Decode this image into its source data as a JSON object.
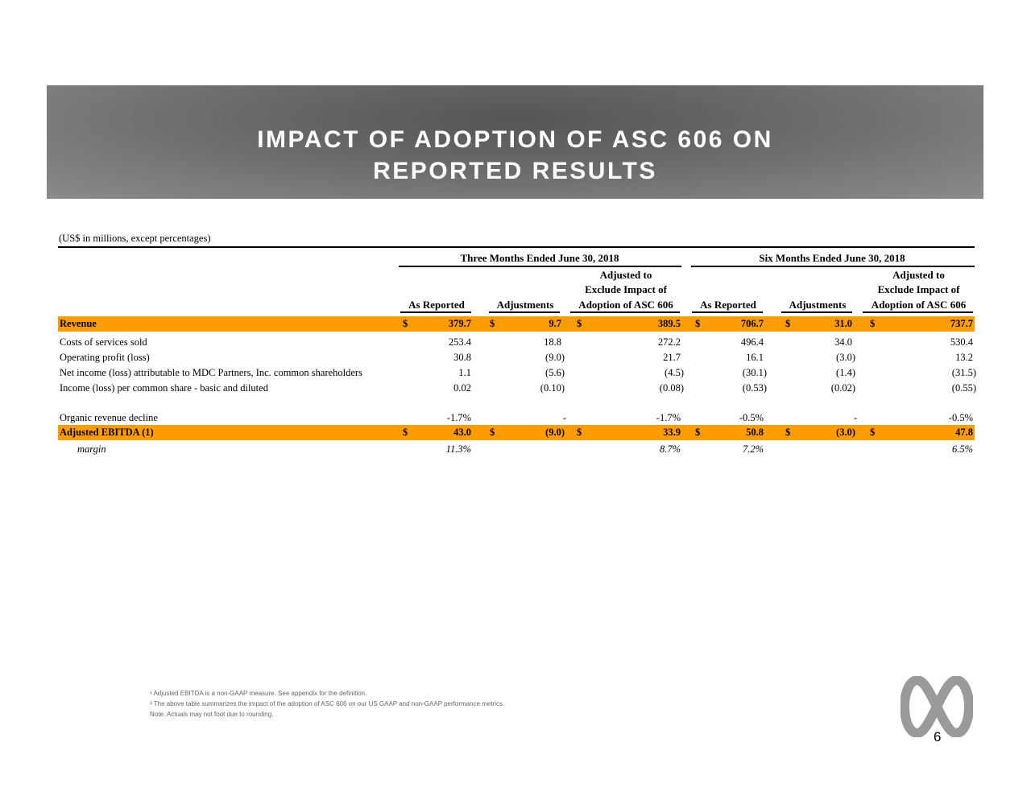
{
  "title_line1": "IMPACT OF ADOPTION OF ASC 606 ON",
  "title_line2": "REPORTED RESULTS",
  "units_note": "(US$ in millions, except percentages)",
  "groups": [
    "Three Months Ended June 30, 2018",
    "Six Months Ended June 30, 2018"
  ],
  "col_headers": {
    "as_reported": "As Reported",
    "adjustments": "Adjustments",
    "adjusted_l1": "Adjusted to",
    "adjusted_l2": "Exclude Impact of",
    "adjusted_l3": "Adoption of ASC 606"
  },
  "currency": "$",
  "rows": [
    {
      "label": "Revenue",
      "style": "highlight",
      "dollar": true,
      "values": [
        "379.7",
        "9.7",
        "389.5",
        "706.7",
        "31.0",
        "737.7"
      ]
    },
    {
      "label": "Costs of services sold",
      "values": [
        "253.4",
        "18.8",
        "272.2",
        "496.4",
        "34.0",
        "530.4"
      ]
    },
    {
      "label": "Operating profit (loss)",
      "values": [
        "30.8",
        "(9.0)",
        "21.7",
        "16.1",
        "(3.0)",
        "13.2"
      ]
    },
    {
      "label": "Net income (loss) attributable to MDC Partners, Inc. common shareholders",
      "values": [
        "1.1",
        "(5.6)",
        "(4.5)",
        "(30.1)",
        "(1.4)",
        "(31.5)"
      ]
    },
    {
      "label": "Income (loss) per common share - basic and diluted",
      "values": [
        "0.02",
        "(0.10)",
        "(0.08)",
        "(0.53)",
        "(0.02)",
        "(0.55)"
      ]
    },
    {
      "label": "Organic revenue decline",
      "values": [
        "-1.7%",
        "-",
        "-1.7%",
        "-0.5%",
        "-",
        "-0.5%"
      ]
    },
    {
      "label": "Adjusted EBITDA (1)",
      "style": "highlight",
      "dollar": true,
      "values": [
        "43.0",
        "(9.0)",
        "33.9",
        "50.8",
        "(3.0)",
        "47.8"
      ]
    },
    {
      "label": "margin",
      "style": "italic",
      "values": [
        "11.3%",
        "",
        "8.7%",
        "7.2%",
        "",
        "6.5%"
      ]
    }
  ],
  "footnotes": [
    "¹ Adjusted EBITDA is a non-GAAP measure. See appendix for the definition.",
    "² The above table summarizes the impact of the adoption of ASC 606 on our US GAAP and non-GAAP performance metrics.",
    "Note: Actuals may not foot due to rounding."
  ],
  "page_number": "6",
  "colors": {
    "highlight": "#ff9d00",
    "banner": "#5a5b5a"
  }
}
